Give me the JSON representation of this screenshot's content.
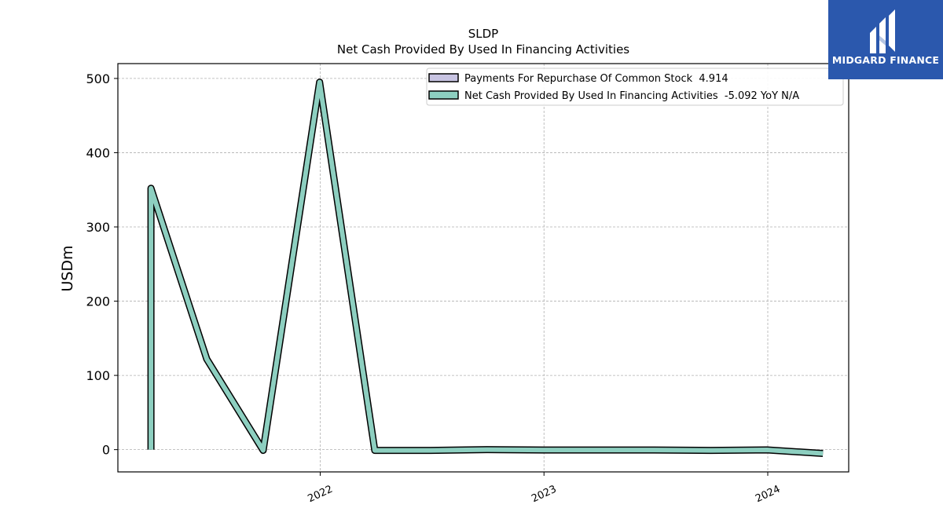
{
  "chart_data": {
    "type": "line",
    "title": "SLDP",
    "subtitle": "Net Cash Provided By Used In Financing Activities",
    "ylabel": "USDm",
    "xlabel": "",
    "ylim": [
      -30,
      520
    ],
    "xlim": [
      "2021-02-05",
      "2024-05-12"
    ],
    "grid": true,
    "legend_position": "top-right",
    "y_ticks": [
      0,
      100,
      200,
      300,
      400,
      500
    ],
    "x_ticks": [
      {
        "date": "2022-01-01",
        "label": "2022"
      },
      {
        "date": "2023-01-01",
        "label": "2023"
      },
      {
        "date": "2024-01-01",
        "label": "2024"
      }
    ],
    "series": [
      {
        "name": "Payments For Repurchase Of Common Stock",
        "legend_value": "4.914",
        "color": "#c8c4e2",
        "x": [],
        "values": []
      },
      {
        "name": "Net Cash Provided By Used In Financing Activities",
        "legend_value": "-5.092 YoY N/A",
        "color": "#8dcfc0",
        "x": [
          "2021-03-31",
          "2021-03-31",
          "2021-06-30",
          "2021-09-30",
          "2021-12-31",
          "2022-03-31",
          "2022-06-30",
          "2022-09-30",
          "2022-12-31",
          "2023-03-31",
          "2023-06-30",
          "2023-09-30",
          "2023-12-31",
          "2024-03-31"
        ],
        "values": [
          0,
          352,
          122,
          -1,
          495,
          -1,
          -1,
          0,
          -0.5,
          -0.5,
          -0.5,
          -1,
          -0.4,
          -5.1
        ]
      }
    ]
  },
  "logo": {
    "text": "MIDGARD FINANCE"
  }
}
